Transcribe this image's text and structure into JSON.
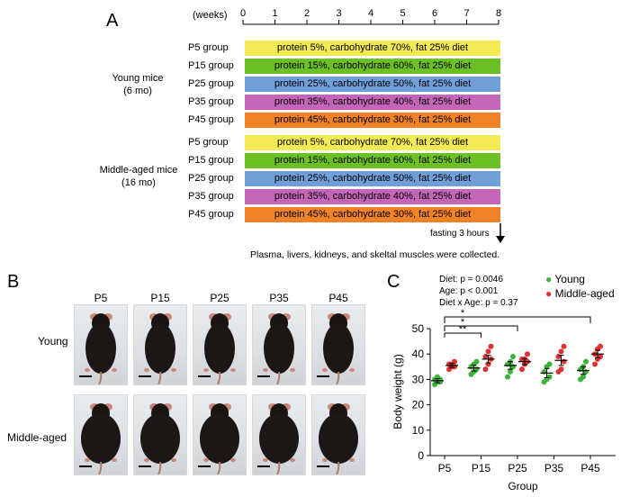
{
  "panel_a": {
    "letter": "A",
    "weeks_label": "(weeks)",
    "weeks": [
      "0",
      "1",
      "2",
      "3",
      "4",
      "5",
      "6",
      "7",
      "8"
    ],
    "young_label_1": "Young mice",
    "young_label_2": "(6 mo)",
    "middle_label_1": "Middle-aged mice",
    "middle_label_2": "(16 mo)",
    "groups": [
      {
        "name": "P5 group",
        "diet": "protein 5%, carbohydrate 70%, fat 25% diet",
        "color": "#f2ea52"
      },
      {
        "name": "P15 group",
        "diet": "protein 15%, carbohydrate 60%, fat 25% diet",
        "color": "#6cc024"
      },
      {
        "name": "P25 group",
        "diet": "protein 25%, carbohydrate 50%, fat 25% diet",
        "color": "#6f9ed8"
      },
      {
        "name": "P35 group",
        "diet": "protein 35%, carbohydrate 40%, fat 25% diet",
        "color": "#c465b8"
      },
      {
        "name": "P45 group",
        "diet": "protein 45%, carbohydrate 30%, fat 25% diet",
        "color": "#f08228"
      }
    ],
    "fasting": "fasting 3 hours",
    "collection": "Plasma, livers, kidneys, and skeltal muscles were collected."
  },
  "panel_b": {
    "letter": "B",
    "columns": [
      "P5",
      "P15",
      "P25",
      "P35",
      "P45"
    ],
    "rows": [
      "Young",
      "Middle-aged"
    ]
  },
  "panel_c": {
    "letter": "C",
    "stats": [
      "Diet: p = 0.0046",
      "Age: p < 0.001",
      "Diet x Age: p = 0.37"
    ],
    "legend_young": "Young",
    "legend_middle": "Middle-aged",
    "young_color": "#3cb43c",
    "middle_color": "#e03030",
    "sig_marks": [
      "*",
      "*",
      "**"
    ]
  },
  "chart_data": {
    "type": "scatter",
    "title": "",
    "xlabel": "Group",
    "ylabel": "Body weight (g)",
    "categories": [
      "P5",
      "P15",
      "P25",
      "P35",
      "P45"
    ],
    "ylim": [
      0,
      50
    ],
    "yticks": [
      "0",
      "10",
      "20",
      "30",
      "40",
      "50"
    ],
    "series": [
      {
        "name": "Young",
        "means": [
          29.5,
          34.5,
          35.5,
          32.5,
          33.5
        ],
        "sem": [
          0.8,
          1.2,
          1.5,
          1.8,
          1.5
        ],
        "points": [
          [
            28,
            29,
            30,
            30,
            31,
            29
          ],
          [
            32,
            33,
            34,
            35,
            36,
            37
          ],
          [
            31,
            33,
            35,
            36,
            37,
            39
          ],
          [
            29,
            30,
            31,
            33,
            35,
            36
          ],
          [
            30,
            31,
            33,
            34,
            35,
            37
          ]
        ]
      },
      {
        "name": "Middle-aged",
        "means": [
          35.5,
          38.0,
          37.0,
          37.5,
          40.0
        ],
        "sem": [
          0.8,
          1.5,
          1.2,
          2.0,
          1.5
        ],
        "points": [
          [
            34,
            35,
            35,
            36,
            36,
            37
          ],
          [
            34,
            36,
            38,
            39,
            41,
            43
          ],
          [
            34,
            36,
            37,
            38,
            38,
            40
          ],
          [
            33,
            34,
            37,
            39,
            41,
            43
          ],
          [
            36,
            38,
            39,
            40,
            42,
            43
          ]
        ]
      }
    ]
  }
}
